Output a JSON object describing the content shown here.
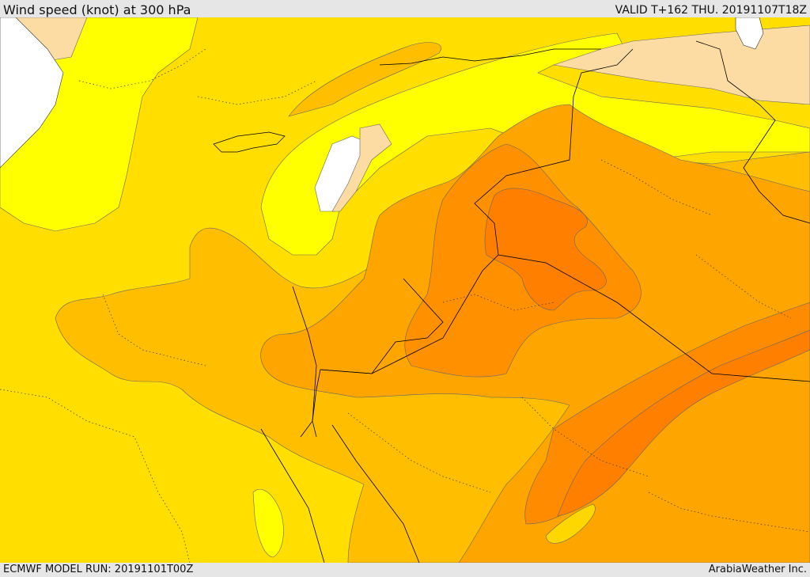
{
  "header": {
    "title": "Wind speed (knot) at 300 hPa",
    "valid_time": "VALID T+162 THU. 20191107T18Z"
  },
  "footer": {
    "model_run": "ECMWF MODEL RUN: 20191101T00Z",
    "credit": "ArabiaWeather Inc."
  },
  "map": {
    "field": "wind speed 300 hPa",
    "colors": {
      "land_base": "#ffde00",
      "light_yellow": "#ffff00",
      "gold": "#ffd700",
      "amber": "#ffbf00",
      "orange_light": "#ffa500",
      "orange": "#ff9000",
      "orange_dark": "#ff7f00",
      "peach": "#fddca3",
      "sea": "#ffffff",
      "border": "#000000"
    }
  }
}
